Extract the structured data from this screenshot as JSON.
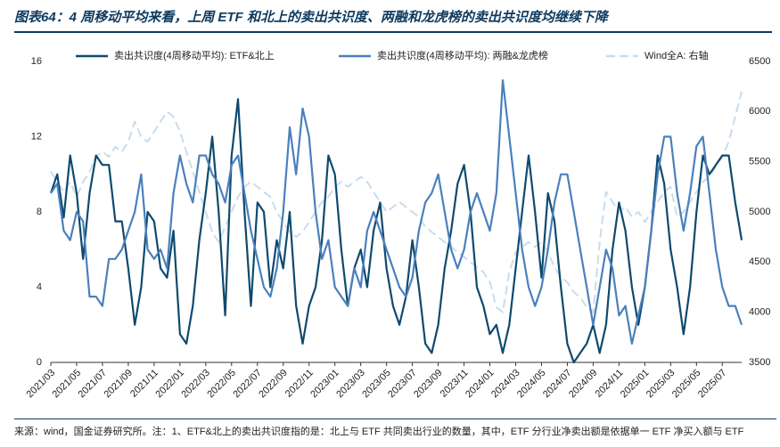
{
  "chart_data": {
    "type": "line",
    "title": "图表64：4 周移动平均来看，上周 ETF 和北上的卖出共识度、两融和龙虎榜的卖出共识度均继续下降",
    "note": "来源：wind，国金证券研究所。注：1、ETF&北上的卖出共识度指的是：北上与 ETF 共同卖出行业的数量，其中，ETF 分行业净卖出额是依据单一 ETF 净买入额与 ETF",
    "categories": [
      "2021/03",
      null,
      null,
      null,
      "2021/05",
      null,
      null,
      null,
      "2021/07",
      null,
      null,
      null,
      "2021/09",
      null,
      null,
      null,
      "2021/11",
      null,
      null,
      null,
      "2022/01",
      null,
      null,
      null,
      "2022/03",
      null,
      null,
      null,
      "2022/05",
      null,
      null,
      null,
      "2022/07",
      null,
      null,
      null,
      "2022/09",
      null,
      null,
      null,
      "2022/11",
      null,
      null,
      null,
      "2023/01",
      null,
      null,
      null,
      "2023/03",
      null,
      null,
      null,
      "2023/05",
      null,
      null,
      null,
      "2023/07",
      null,
      null,
      null,
      "2023/09",
      null,
      null,
      null,
      "2023/11",
      null,
      null,
      null,
      "2024/01",
      null,
      null,
      null,
      "2024/03",
      null,
      null,
      null,
      "2024/05",
      null,
      null,
      null,
      "2024/07",
      null,
      null,
      null,
      "2024/09",
      null,
      null,
      null,
      "2024/11",
      null,
      null,
      null,
      "2025/01",
      null,
      null,
      null,
      "2025/03",
      null,
      null,
      null,
      "2025/05",
      null,
      null,
      null,
      "2025/07",
      null,
      null,
      null
    ],
    "series": [
      {
        "name": "卖出共识度(4周移动平均): ETF&北上",
        "color": "#0e4a6e",
        "dash": false,
        "values": [
          9,
          10,
          7.7,
          11,
          9,
          5.5,
          9,
          11,
          10.5,
          10.5,
          7.5,
          7.5,
          5,
          2,
          4,
          8,
          7.5,
          5,
          4.5,
          7,
          1.5,
          1,
          3,
          6.5,
          9,
          12,
          8,
          2.5,
          11,
          14,
          8,
          3,
          8.5,
          8,
          4,
          6.5,
          5,
          8,
          3,
          1,
          3,
          4,
          6.5,
          11,
          10,
          6,
          3,
          5,
          6,
          4,
          7,
          8.5,
          5,
          3,
          2,
          3.5,
          6.5,
          4,
          1,
          0.5,
          2,
          5,
          7,
          9.5,
          10.5,
          8,
          4,
          3,
          1.5,
          2,
          0.5,
          2,
          5,
          8,
          11,
          8,
          4.5,
          9,
          7.5,
          4,
          1,
          0,
          0.5,
          1,
          2,
          0.5,
          2,
          6,
          8.5,
          7,
          4,
          2,
          4,
          7,
          11,
          9.5,
          6,
          4,
          1.5,
          4,
          8,
          11,
          10,
          10.5,
          11,
          11,
          8.5,
          6.5
        ]
      },
      {
        "name": "卖出共识度(4周移动平均): 两融&龙虎榜",
        "color": "#4a80bd",
        "dash": false,
        "values": [
          9,
          9.5,
          7,
          6.5,
          8,
          7.5,
          3.5,
          3.5,
          3,
          5.5,
          5.5,
          6,
          7,
          8,
          10,
          6,
          5.5,
          6,
          5,
          9,
          11,
          9.5,
          8.5,
          11,
          11,
          10,
          9.5,
          8.5,
          10.5,
          11,
          9,
          7,
          5.5,
          4,
          3.5,
          5,
          8,
          12.5,
          10,
          13.5,
          12,
          8,
          5.5,
          6.5,
          4,
          3.5,
          3,
          5,
          4,
          7,
          8,
          7,
          6,
          5,
          4,
          3.5,
          4.5,
          7,
          8.5,
          9,
          10,
          8,
          6,
          5,
          6,
          8,
          9,
          8,
          7,
          9,
          15,
          12,
          9,
          6,
          4,
          3,
          4,
          6,
          8.5,
          10,
          10,
          8,
          6,
          4,
          2,
          4,
          6,
          5,
          2.5,
          3,
          1,
          2.5,
          4,
          7,
          10,
          12,
          12,
          9,
          7,
          9,
          11.5,
          12,
          9,
          6,
          4,
          3,
          3,
          2
        ]
      },
      {
        "name": "Wind全A: 右轴",
        "color": "#c9dcee",
        "dash": true,
        "axis": "y2",
        "values": [
          5400,
          5300,
          5200,
          5300,
          5150,
          5300,
          5400,
          5550,
          5600,
          5550,
          5650,
          5600,
          5700,
          5900,
          5750,
          5700,
          5800,
          5900,
          6000,
          5950,
          5800,
          5600,
          5400,
          5200,
          5000,
          4800,
          4700,
          4850,
          5000,
          5150,
          5250,
          5300,
          5250,
          5200,
          5150,
          5000,
          4900,
          4800,
          4750,
          4800,
          4900,
          5000,
          5100,
          5150,
          5250,
          5300,
          5250,
          5300,
          5350,
          5300,
          5200,
          5100,
          5000,
          5050,
          5100,
          5050,
          5000,
          4950,
          4850,
          4800,
          4750,
          4700,
          4650,
          4600,
          4550,
          4500,
          4450,
          4400,
          4300,
          4050,
          4000,
          4400,
          4600,
          4650,
          4700,
          4650,
          4700,
          4600,
          4450,
          4350,
          4300,
          4200,
          4150,
          4050,
          4000,
          4700,
          5200,
          5100,
          5000,
          5050,
          4950,
          5000,
          4900,
          5000,
          5100,
          5200,
          5250,
          4950,
          5000,
          5100,
          5200,
          5300,
          5350,
          5450,
          5550,
          5700,
          5950,
          6200
        ]
      }
    ],
    "ylim": [
      0,
      16
    ],
    "yticks": [
      0,
      4,
      8,
      12,
      16
    ],
    "y2lim": [
      3500,
      6500
    ],
    "y2ticks": [
      3500,
      4000,
      4500,
      5000,
      5500,
      6000,
      6500
    ],
    "grid": false,
    "legend": "top"
  }
}
